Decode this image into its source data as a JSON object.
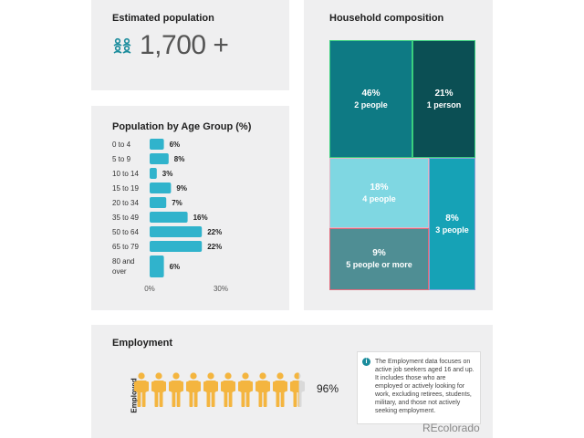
{
  "population": {
    "title": "Estimated population",
    "value": "1,700 +",
    "icon": "people-group-icon"
  },
  "chart_data": [
    {
      "type": "bar",
      "orientation": "horizontal",
      "title": "Population by Age Group (%)",
      "categories": [
        "0 to 4",
        "5 to 9",
        "10 to 14",
        "15 to 19",
        "20 to 34",
        "35 to 49",
        "50 to 64",
        "65 to 79",
        "80 and over"
      ],
      "values": [
        6,
        8,
        3,
        9,
        7,
        16,
        22,
        22,
        6
      ],
      "value_labels": [
        "6%",
        "8%",
        "3%",
        "9%",
        "7%",
        "16%",
        "22%",
        "22%",
        "6%"
      ],
      "xtick_labels": [
        "0%",
        "30%"
      ],
      "xlim": [
        0,
        50
      ],
      "color": "#30b3cc"
    },
    {
      "type": "treemap",
      "title": "Household composition",
      "items": [
        {
          "pct": "46%",
          "label": "2 people",
          "value": 46,
          "color": "#0e7a84"
        },
        {
          "pct": "21%",
          "label": "1 person",
          "value": 21,
          "color": "#0b4f54"
        },
        {
          "pct": "18%",
          "label": "4 people",
          "value": 18,
          "color": "#7fd7e2"
        },
        {
          "pct": "8%",
          "label": "3 people",
          "value": 8,
          "color": "#16a2b6"
        },
        {
          "pct": "9%",
          "label": "5 people or more",
          "value": 9,
          "color": "#4f8e94"
        }
      ]
    },
    {
      "type": "pictogram",
      "title": "Employment",
      "axis_label": "Employed",
      "icons_total": 10,
      "value": 96,
      "value_label": "96%",
      "filled_color": "#f4b53f",
      "empty_color": "#d9d9d9"
    }
  ],
  "note": {
    "icon": "info-icon",
    "text": "The Employment data focuses on active job seekers aged 16 and up. It includes those who are employed or actively looking for work, excluding retirees, students, military, and those not actively seeking employment."
  },
  "watermark": "REcolorado"
}
